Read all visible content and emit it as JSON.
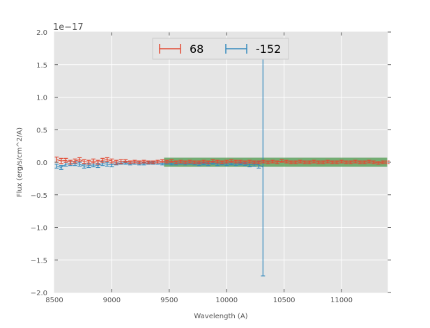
{
  "chart_data": {
    "type": "scatter",
    "title": "",
    "xlabel": "Wavelength (A)",
    "ylabel": "Flux (erg/s/cm^2/A)",
    "offset_label": "1e−17",
    "xlim": [
      8500,
      11400
    ],
    "ylim": [
      -2.0,
      2.0
    ],
    "grid": true,
    "legend_placement": "top-center",
    "xticks": [
      8500,
      9000,
      9500,
      10000,
      10500,
      11000
    ],
    "xtick_labels": [
      "8500",
      "9000",
      "9500",
      "10000",
      "10500",
      "11000"
    ],
    "yticks": [
      -2.0,
      -1.5,
      -1.0,
      -0.5,
      0.0,
      0.5,
      1.0,
      1.5,
      2.0
    ],
    "ytick_labels": [
      "−2.0",
      "−1.5",
      "−1.0",
      "−0.5",
      "0.0",
      "0.5",
      "1.0",
      "1.5",
      "2.0"
    ],
    "band": {
      "x": [
        9455,
        11400
      ],
      "y": [
        -0.07,
        0.07
      ],
      "color": "#4c9a4c"
    },
    "series": [
      {
        "name": "68",
        "color": "#E24A33",
        "x": [
          8520,
          8560,
          8600,
          8640,
          8680,
          8720,
          8760,
          8800,
          8840,
          8880,
          8920,
          8960,
          9000,
          9040,
          9080,
          9120,
          9160,
          9200,
          9240,
          9280,
          9320,
          9360,
          9400,
          9440,
          9480,
          9520,
          9560,
          9600,
          9640,
          9680,
          9720,
          9760,
          9800,
          9840,
          9880,
          9920,
          9960,
          10000,
          10040,
          10080,
          10120,
          10160,
          10200,
          10240,
          10280,
          10320,
          10360,
          10400,
          10440,
          10480,
          10520,
          10560,
          10600,
          10640,
          10680,
          10720,
          10760,
          10800,
          10840,
          10880,
          10920,
          10960,
          11000,
          11040,
          11080,
          11120,
          11160,
          11200,
          11240,
          11280,
          11320,
          11360,
          11400
        ],
        "y": [
          0.04,
          0.02,
          0.03,
          0.0,
          0.02,
          0.04,
          0.01,
          0.0,
          0.02,
          0.0,
          0.03,
          0.04,
          0.02,
          0.0,
          0.01,
          0.02,
          0.0,
          0.01,
          0.0,
          0.01,
          0.0,
          0.0,
          0.01,
          0.02,
          0.01,
          0.02,
          0.0,
          0.01,
          0.0,
          0.01,
          0.0,
          0.0,
          0.01,
          0.0,
          0.02,
          0.01,
          0.0,
          0.01,
          0.02,
          0.01,
          0.01,
          0.0,
          0.01,
          0.0,
          0.0,
          0.01,
          0.0,
          0.01,
          0.0,
          0.02,
          0.01,
          0.0,
          0.0,
          0.01,
          0.0,
          0.0,
          0.01,
          0.0,
          0.0,
          0.01,
          0.0,
          0.0,
          0.01,
          0.0,
          0.0,
          0.01,
          0.0,
          0.0,
          0.01,
          0.0,
          -0.01,
          0.0,
          0.0
        ],
        "err": [
          0.04,
          0.04,
          0.03,
          0.03,
          0.03,
          0.03,
          0.03,
          0.03,
          0.03,
          0.03,
          0.03,
          0.03,
          0.03,
          0.03,
          0.03,
          0.02,
          0.02,
          0.02,
          0.02,
          0.02,
          0.02,
          0.02,
          0.02,
          0.02,
          0.02,
          0.02,
          0.02,
          0.02,
          0.02,
          0.02,
          0.02,
          0.02,
          0.02,
          0.02,
          0.02,
          0.02,
          0.02,
          0.02,
          0.02,
          0.02,
          0.02,
          0.02,
          0.02,
          0.02,
          0.02,
          0.02,
          0.02,
          0.02,
          0.02,
          0.02,
          0.02,
          0.02,
          0.02,
          0.02,
          0.02,
          0.02,
          0.02,
          0.02,
          0.02,
          0.02,
          0.02,
          0.02,
          0.02,
          0.02,
          0.02,
          0.02,
          0.02,
          0.02,
          0.02,
          0.02,
          0.02,
          0.02,
          0.02
        ]
      },
      {
        "name": "-152",
        "color": "#348ABD",
        "x": [
          8520,
          8560,
          8600,
          8640,
          8680,
          8720,
          8760,
          8800,
          8840,
          8880,
          8920,
          8960,
          9000,
          9040,
          9080,
          9120,
          9160,
          9200,
          9240,
          9280,
          9320,
          9360,
          9400,
          9440,
          9480,
          9520,
          9560,
          9600,
          9640,
          9680,
          9720,
          9760,
          9800,
          9840,
          9880,
          9920,
          9960,
          10000,
          10040,
          10080,
          10120,
          10160,
          10200,
          10240,
          10280,
          10316
        ],
        "y": [
          -0.06,
          -0.08,
          -0.03,
          -0.02,
          -0.02,
          -0.03,
          -0.06,
          -0.05,
          -0.04,
          -0.05,
          -0.02,
          -0.03,
          -0.04,
          -0.02,
          -0.01,
          -0.01,
          -0.02,
          -0.01,
          -0.01,
          -0.02,
          -0.01,
          -0.01,
          -0.01,
          -0.02,
          -0.01,
          -0.02,
          -0.02,
          -0.01,
          -0.02,
          -0.01,
          -0.02,
          -0.03,
          -0.02,
          -0.03,
          -0.01,
          -0.03,
          -0.02,
          -0.03,
          -0.02,
          -0.03,
          -0.02,
          -0.03,
          -0.04,
          -0.03,
          -0.04,
          -0.075
        ],
        "err": [
          0.03,
          0.03,
          0.03,
          0.03,
          0.03,
          0.03,
          0.03,
          0.03,
          0.03,
          0.03,
          0.03,
          0.03,
          0.03,
          0.02,
          0.02,
          0.02,
          0.02,
          0.02,
          0.03,
          0.02,
          0.02,
          0.02,
          0.02,
          0.02,
          0.02,
          0.02,
          0.02,
          0.02,
          0.02,
          0.02,
          0.02,
          0.02,
          0.02,
          0.02,
          0.02,
          0.02,
          0.02,
          0.02,
          0.02,
          0.02,
          0.02,
          0.02,
          0.03,
          0.03,
          0.05,
          1.67
        ]
      }
    ]
  }
}
